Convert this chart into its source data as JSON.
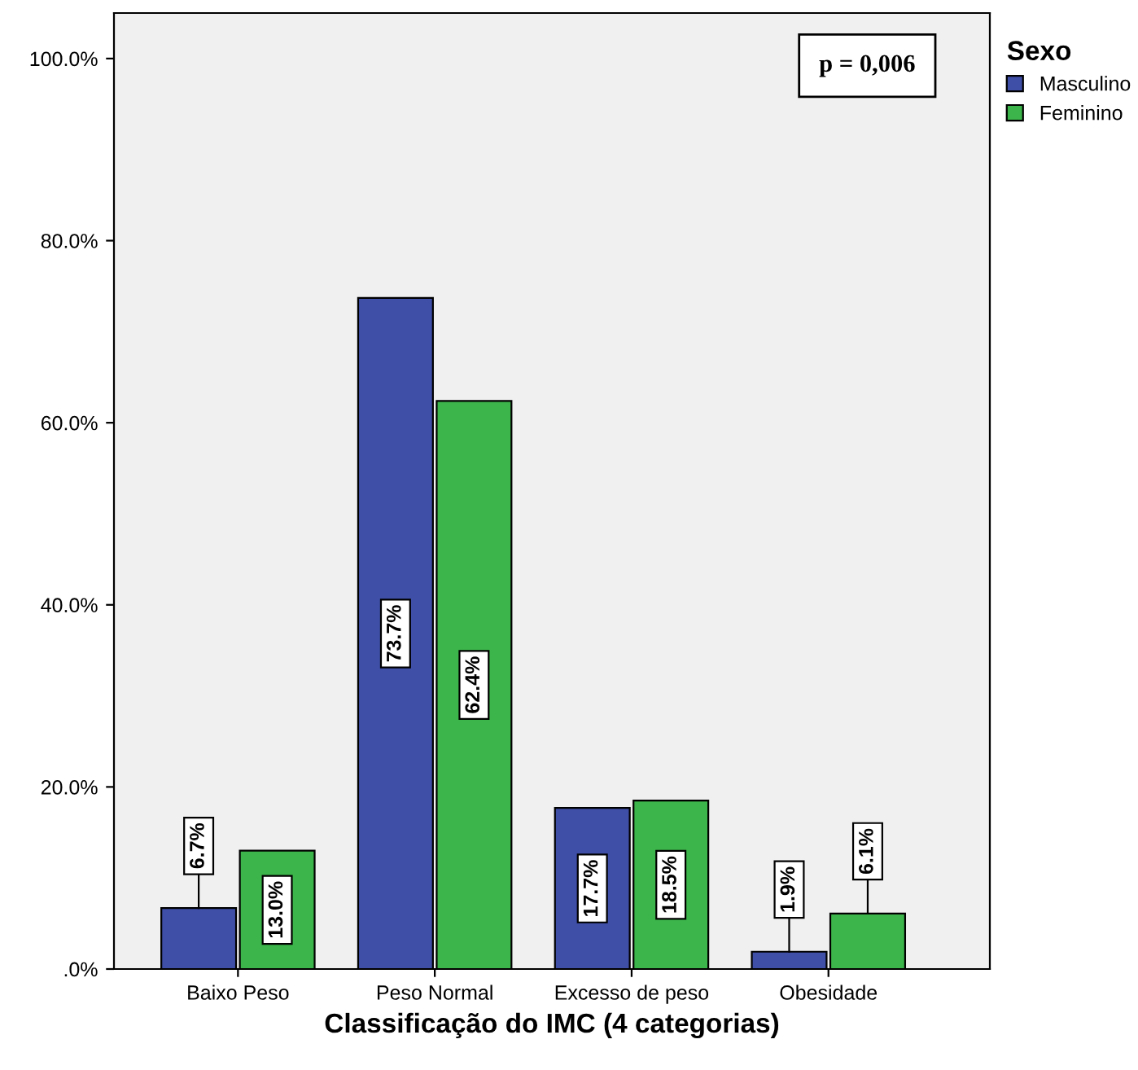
{
  "chart_data": {
    "type": "bar",
    "xlabel": "Classificação do IMC (4 categorias)",
    "categories": [
      "Baixo Peso",
      "Peso Normal",
      "Excesso de peso",
      "Obesidade"
    ],
    "series": [
      {
        "name": "Masculino",
        "color": "#3f4ea6",
        "values": [
          6.7,
          73.7,
          17.7,
          1.9
        ]
      },
      {
        "name": "Feminino",
        "color": "#3cb54a",
        "values": [
          13.0,
          62.4,
          18.5,
          6.1
        ]
      }
    ],
    "value_labels": [
      [
        "6.7%",
        "73.7%",
        "17.7%",
        "1.9%"
      ],
      [
        "13.0%",
        "62.4%",
        "18.5%",
        "6.1%"
      ]
    ],
    "ylim": [
      0,
      105
    ],
    "yticks": [
      {
        "value": 0,
        "label": ".0%"
      },
      {
        "value": 20,
        "label": "20.0%"
      },
      {
        "value": 40,
        "label": "40.0%"
      },
      {
        "value": 60,
        "label": "60.0%"
      },
      {
        "value": 80,
        "label": "80.0%"
      },
      {
        "value": 100,
        "label": "100.0%"
      }
    ],
    "legend_title": "Sexo",
    "legend": "right",
    "grid": false,
    "annotations": [
      "p = 0,006"
    ]
  }
}
